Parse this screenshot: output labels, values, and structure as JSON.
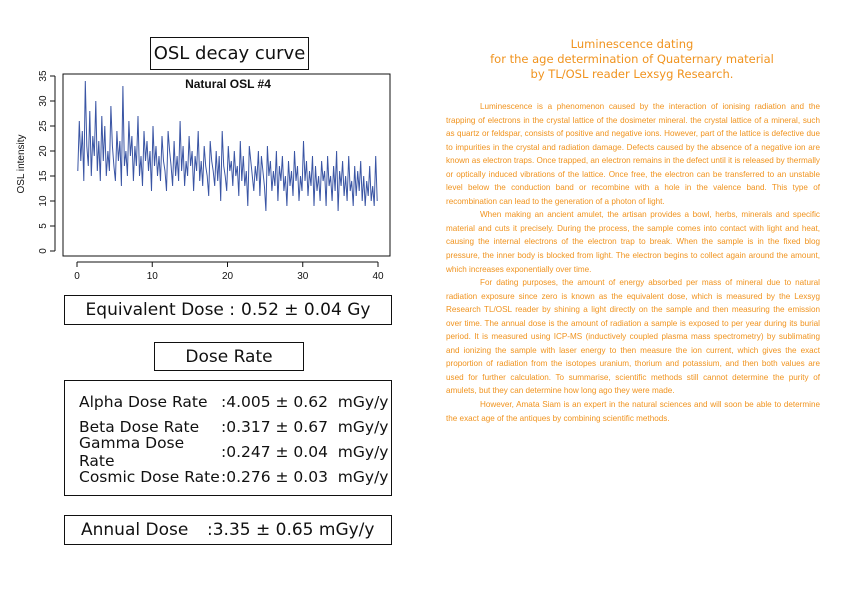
{
  "chart_box_title": "OSL decay curve",
  "chart_data": {
    "type": "line",
    "title": "Natural OSL #4",
    "xlabel": "",
    "ylabel": "OSL intensity",
    "xlim": [
      0,
      40
    ],
    "ylim": [
      0,
      35
    ],
    "xticks": [
      0,
      10,
      20,
      30,
      40
    ],
    "yticks": [
      0,
      5,
      10,
      15,
      20,
      25,
      30,
      35
    ],
    "grid": false,
    "series": [
      {
        "color": "#3A55A4",
        "x": [
          0.1,
          0.3,
          0.5,
          0.7,
          0.9,
          1.1,
          1.3,
          1.5,
          1.7,
          1.9,
          2.1,
          2.3,
          2.5,
          2.7,
          2.9,
          3.1,
          3.3,
          3.5,
          3.7,
          3.9,
          4.1,
          4.3,
          4.5,
          4.7,
          4.9,
          5.1,
          5.3,
          5.5,
          5.7,
          5.9,
          6.1,
          6.3,
          6.5,
          6.7,
          6.9,
          7.1,
          7.3,
          7.5,
          7.7,
          7.9,
          8.1,
          8.3,
          8.5,
          8.7,
          8.9,
          9.1,
          9.3,
          9.5,
          9.7,
          9.9,
          10.1,
          10.3,
          10.5,
          10.7,
          10.9,
          11.1,
          11.3,
          11.5,
          11.7,
          11.9,
          12.1,
          12.3,
          12.5,
          12.7,
          12.9,
          13.1,
          13.3,
          13.5,
          13.7,
          13.9,
          14.1,
          14.3,
          14.5,
          14.7,
          14.9,
          15.1,
          15.3,
          15.5,
          15.7,
          15.9,
          16.1,
          16.3,
          16.5,
          16.7,
          16.9,
          17.1,
          17.3,
          17.5,
          17.7,
          17.9,
          18.1,
          18.3,
          18.5,
          18.7,
          18.9,
          19.1,
          19.3,
          19.5,
          19.7,
          19.9,
          20.1,
          20.3,
          20.5,
          20.7,
          20.9,
          21.1,
          21.3,
          21.5,
          21.7,
          21.9,
          22.1,
          22.3,
          22.5,
          22.7,
          22.9,
          23.1,
          23.3,
          23.5,
          23.7,
          23.9,
          24.1,
          24.3,
          24.5,
          24.7,
          24.9,
          25.1,
          25.3,
          25.5,
          25.7,
          25.9,
          26.1,
          26.3,
          26.5,
          26.7,
          26.9,
          27.1,
          27.3,
          27.5,
          27.7,
          27.9,
          28.1,
          28.3,
          28.5,
          28.7,
          28.9,
          29.1,
          29.3,
          29.5,
          29.7,
          29.9,
          30.1,
          30.3,
          30.5,
          30.7,
          30.9,
          31.1,
          31.3,
          31.5,
          31.7,
          31.9,
          32.1,
          32.3,
          32.5,
          32.7,
          32.9,
          33.1,
          33.3,
          33.5,
          33.7,
          33.9,
          34.1,
          34.3,
          34.5,
          34.7,
          34.9,
          35.1,
          35.3,
          35.5,
          35.7,
          35.9,
          36.1,
          36.3,
          36.5,
          36.7,
          36.9,
          37.1,
          37.3,
          37.5,
          37.7,
          37.9,
          38.1,
          38.3,
          38.5,
          38.7,
          38.9,
          39.1,
          39.3,
          39.5,
          39.7,
          39.9
        ],
        "y": [
          16,
          26,
          18,
          24,
          14,
          34,
          21,
          17,
          28,
          15,
          23,
          19,
          30,
          16,
          22,
          14,
          27,
          18,
          25,
          15,
          20,
          16,
          29,
          21,
          17,
          14,
          24,
          18,
          22,
          13,
          33,
          17,
          20,
          15,
          26,
          19,
          23,
          14,
          21,
          17,
          27,
          15,
          19,
          13,
          24,
          18,
          22,
          16,
          20,
          12,
          25,
          17,
          21,
          15,
          19,
          14,
          23,
          18,
          16,
          12,
          24,
          20,
          17,
          13,
          22,
          15,
          19,
          14,
          26,
          16,
          21,
          13,
          18,
          15,
          23,
          17,
          20,
          12,
          19,
          16,
          24,
          14,
          18,
          13,
          21,
          17,
          15,
          11,
          22,
          18,
          16,
          13,
          20,
          14,
          19,
          10,
          24,
          17,
          15,
          12,
          21,
          16,
          18,
          13,
          20,
          15,
          17,
          11,
          22,
          14,
          19,
          13,
          16,
          9,
          21,
          18,
          15,
          12,
          17,
          14,
          20,
          11,
          19,
          16,
          13,
          8,
          21,
          15,
          18,
          12,
          16,
          13,
          20,
          10,
          17,
          14,
          19,
          12,
          15,
          9,
          18,
          13,
          16,
          11,
          20,
          14,
          17,
          10,
          15,
          12,
          22,
          14,
          18,
          11,
          16,
          13,
          19,
          9,
          17,
          12,
          15,
          10,
          18,
          14,
          16,
          9,
          19,
          13,
          15,
          10,
          17,
          12,
          20,
          8,
          16,
          13,
          18,
          11,
          15,
          10,
          19,
          12,
          14,
          9,
          17,
          11,
          16,
          12,
          18,
          10,
          15,
          9,
          14,
          11,
          17,
          10,
          13,
          9,
          19,
          10
        ]
      }
    ]
  },
  "equivalent_dose": {
    "label": "Equivalent Dose :",
    "value": "0.52 ± 0.04 Gy"
  },
  "dose_rate_title": "Dose Rate",
  "dose_rates": [
    {
      "label": "Alpha Dose Rate",
      "value": ":4.005 ± 0.62  mGy/y"
    },
    {
      "label": "Beta Dose Rate",
      "value": ":0.317 ± 0.67  mGy/y"
    },
    {
      "label": "Gamma Dose Rate",
      "value": ":0.247 ± 0.04  mGy/y"
    },
    {
      "label": "Cosmic Dose Rate",
      "value": ":0.276 ± 0.03  mGy/y"
    }
  ],
  "annual_dose": {
    "label": "Annual Dose",
    "value": ":3.35 ± 0.65 mGy/y"
  },
  "document": {
    "title_lines": [
      "Luminescence dating",
      "for the age determination of Quaternary material",
      "by TL/OSL reader Lexsyg Research."
    ],
    "paragraphs": [
      "Luminescence is a phenomenon caused by the interaction of ionising radiation and the trapping of electrons in the crystal lattice of the dosimeter mineral. the crystal lattice of a mineral, such as quartz or feldspar, consists of positive and negative ions. However, part of the lattice is defective due to impurities in the crystal and radiation damage. Defects caused by the absence of a negative ion are known as electron traps. Once trapped, an electron remains in the defect until it is released by thermally or optically induced vibrations of the lattice. Once free, the electron can be transferred to an unstable level below the conduction band or recombine with a hole in the valence band. This type of recombination can lead to the generation of a photon of light.",
      "When making an ancient amulet, the artisan provides a bowl, herbs, minerals and specific material and cuts it precisely. During the process, the sample comes into contact with light and heat, causing the internal electrons of the electron trap to break. When the sample is in the fixed blog pressure, the inner body is blocked from light. The electron begins to collect again around the amount, which increases exponentially over time.",
      "For dating purposes, the amount of energy absorbed per mass of mineral due to natural radiation exposure since zero is known as the equivalent dose, which is measured by the Lexsyg Research TL/OSL reader by shining a light directly on the sample and then measuring the emission over time. The annual dose is the amount of radiation a sample is exposed to per year during its burial period. It is measured using ICP-MS (inductively coupled plasma mass spectrometry) by sublimating and ionizing the sample with laser energy to then measure the ion current, which gives the exact proportion of radiation from the isotopes uranium, thorium and potassium, and then both values are used for further calculation. To summarise, scientific methods still cannot determine the purity of amulets, but they can determine how long ago they were made.",
      "However, Amata Siam is an expert in the natural sciences and will soon be able to determine the exact age of the antiques by combining scientific methods."
    ]
  }
}
